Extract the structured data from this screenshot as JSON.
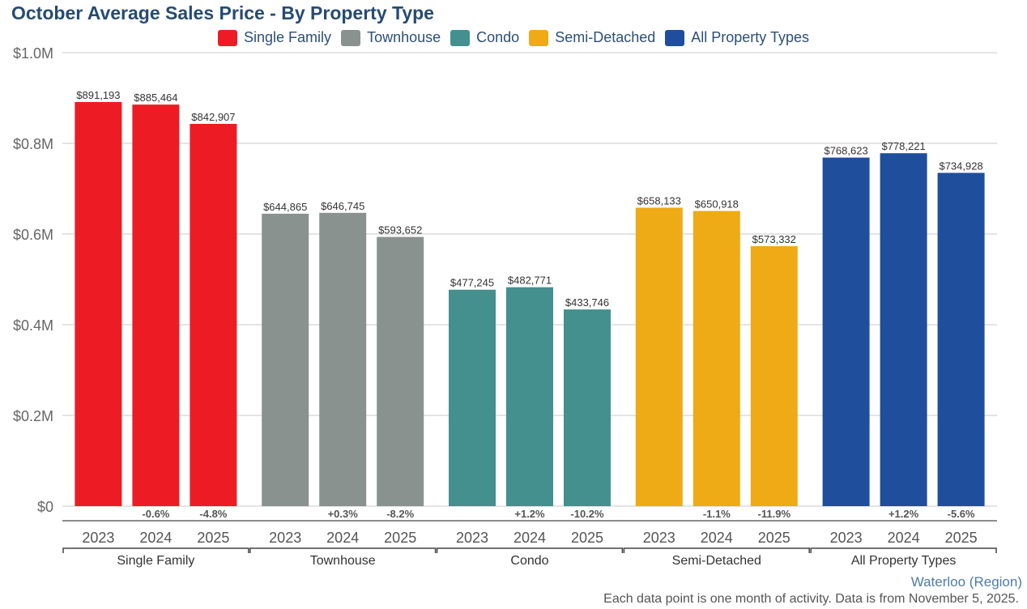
{
  "chart_data": {
    "type": "bar",
    "title": "October Average Sales Price - By Property Type",
    "xlabel": "",
    "ylabel": "",
    "ylim": [
      0,
      1000000
    ],
    "yticks": [
      {
        "value": 0,
        "label": "$0"
      },
      {
        "value": 200000,
        "label": "$0.2M"
      },
      {
        "value": 400000,
        "label": "$0.4M"
      },
      {
        "value": 600000,
        "label": "$0.6M"
      },
      {
        "value": 800000,
        "label": "$0.8M"
      },
      {
        "value": 1000000,
        "label": "$1.0M"
      }
    ],
    "grid": true,
    "legend_position": "top-center",
    "years": [
      "2023",
      "2024",
      "2025"
    ],
    "groups": [
      {
        "name": "Single Family",
        "color": "#ed1c24",
        "values": [
          891193,
          885464,
          842907
        ],
        "labels": [
          "$891,193",
          "$885,464",
          "$842,907"
        ],
        "changes": [
          "",
          "-0.6%",
          "-4.8%"
        ]
      },
      {
        "name": "Townhouse",
        "color": "#8a9290",
        "values": [
          644865,
          646745,
          593652
        ],
        "labels": [
          "$644,865",
          "$646,745",
          "$593,652"
        ],
        "changes": [
          "",
          "+0.3%",
          "-8.2%"
        ]
      },
      {
        "name": "Condo",
        "color": "#43908e",
        "values": [
          477245,
          482771,
          433746
        ],
        "labels": [
          "$477,245",
          "$482,771",
          "$433,746"
        ],
        "changes": [
          "",
          "+1.2%",
          "-10.2%"
        ]
      },
      {
        "name": "Semi-Detached",
        "color": "#eeab16",
        "values": [
          658133,
          650918,
          573332
        ],
        "labels": [
          "$658,133",
          "$650,918",
          "$573,332"
        ],
        "changes": [
          "",
          "-1.1%",
          "-11.9%"
        ]
      },
      {
        "name": "All Property Types",
        "color": "#1f4f9c",
        "values": [
          768623,
          778221,
          734928
        ],
        "labels": [
          "$768,623",
          "$778,221",
          "$734,928"
        ],
        "changes": [
          "",
          "+1.2%",
          "-5.6%"
        ]
      }
    ]
  },
  "region": "Waterloo (Region)",
  "footnote": "Each data point is one month of activity. Data is from November 5, 2025."
}
